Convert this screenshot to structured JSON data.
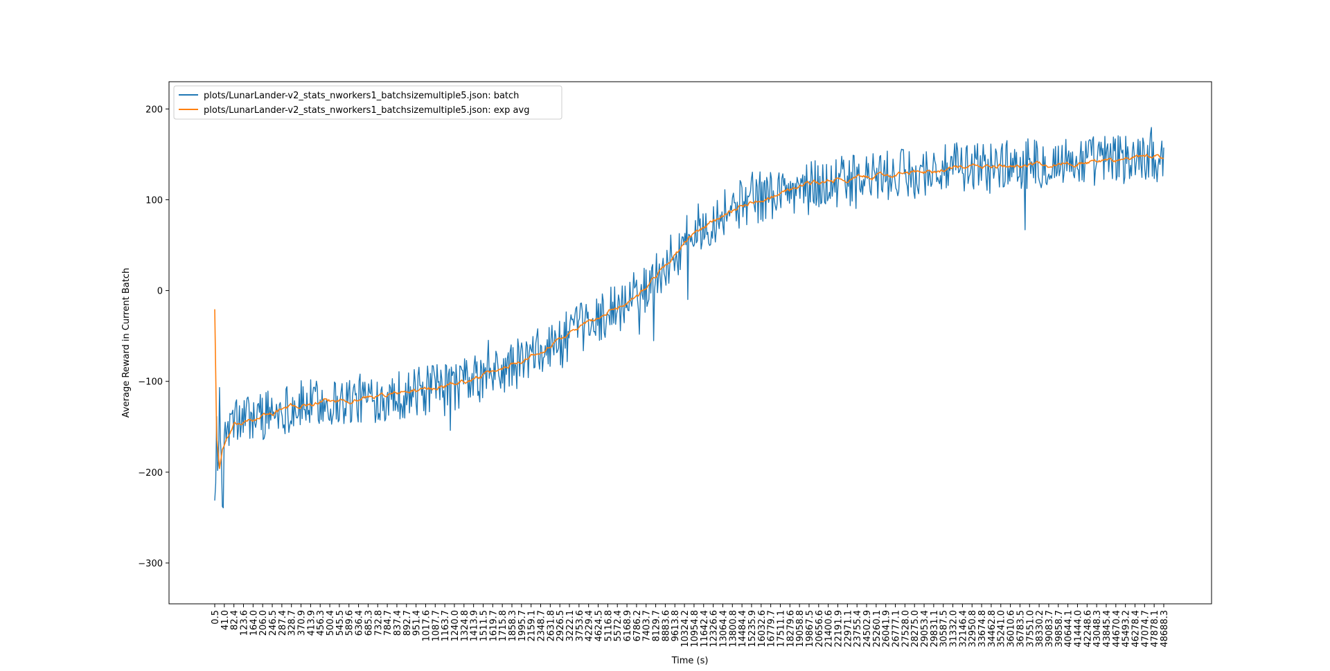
{
  "chart_data": {
    "type": "line",
    "title": "",
    "xlabel": "Time (s)",
    "ylabel": "Average Reward in Current Batch",
    "x_tick_labels": [
      "0.5",
      "41.0",
      "82.4",
      "123.6",
      "164.0",
      "206.0",
      "246.5",
      "287.4",
      "328.7",
      "370.9",
      "413.9",
      "456.3",
      "500.4",
      "545.5",
      "589.6",
      "636.4",
      "685.3",
      "732.8",
      "784.7",
      "837.4",
      "892.7",
      "951.4",
      "1017.6",
      "1087.7",
      "1163.7",
      "1240.0",
      "1324.8",
      "1413.9",
      "1511.5",
      "1619.7",
      "1715.8",
      "1858.3",
      "1995.7",
      "2159.1",
      "2348.7",
      "2631.8",
      "2926.5",
      "3222.1",
      "3753.6",
      "4229.4",
      "4624.5",
      "5116.8",
      "5572.4",
      "6168.9",
      "6786.2",
      "7403.7",
      "8129.7",
      "8883.6",
      "9613.8",
      "10324.2",
      "10954.8",
      "11642.4",
      "12326.6",
      "13064.4",
      "13800.8",
      "14484.4",
      "15235.9",
      "16032.6",
      "16779.7",
      "17511.1",
      "18279.6",
      "19058.8",
      "19867.5",
      "20656.6",
      "21400.6",
      "22191.9",
      "22971.1",
      "23755.4",
      "24502.9",
      "25260.1",
      "26041.9",
      "26777.1",
      "27528.0",
      "28275.0",
      "29053.4",
      "29831.1",
      "30587.5",
      "31332.0",
      "32146.4",
      "32950.8",
      "33674.8",
      "34462.8",
      "35241.0",
      "36010.6",
      "36783.5",
      "37551.0",
      "38330.2",
      "39083.7",
      "39858.7",
      "40644.1",
      "41444.0",
      "42248.6",
      "43048.3",
      "43845.4",
      "44670.4",
      "45493.2",
      "46278.4",
      "47074.7",
      "47878.1",
      "48688.3"
    ],
    "ylim": [
      -345,
      230
    ],
    "y_ticks": [
      -300,
      -200,
      -100,
      0,
      100,
      200
    ],
    "legend_position": "top-left",
    "n_points": 1000,
    "series": [
      {
        "name": "plots/LunarLander-v2_stats_nworkers1_batchsizemultiple5.json: batch",
        "color": "#1f77b4",
        "trend": [
          [
            0,
            -200
          ],
          [
            1,
            -190
          ],
          [
            5,
            -165
          ],
          [
            20,
            -145
          ],
          [
            80,
            -128
          ],
          [
            150,
            -120
          ],
          [
            230,
            -110
          ],
          [
            290,
            -95
          ],
          [
            340,
            -70
          ],
          [
            380,
            -45
          ],
          [
            410,
            -25
          ],
          [
            435,
            -15
          ],
          [
            455,
            5
          ],
          [
            480,
            35
          ],
          [
            505,
            65
          ],
          [
            540,
            90
          ],
          [
            580,
            105
          ],
          [
            620,
            115
          ],
          [
            700,
            125
          ],
          [
            800,
            137
          ],
          [
            900,
            142
          ],
          [
            1000,
            147
          ]
        ],
        "noise_amplitude": 28
      },
      {
        "name": "plots/LunarLander-v2_stats_nworkers1_batchsizemultiple5.json: exp avg",
        "color": "#ff7f0e",
        "trend": [
          [
            0,
            -20
          ],
          [
            2,
            -160
          ],
          [
            5,
            -195
          ],
          [
            8,
            -175
          ],
          [
            20,
            -150
          ],
          [
            80,
            -128
          ],
          [
            150,
            -119
          ],
          [
            230,
            -108
          ],
          [
            290,
            -92
          ],
          [
            340,
            -67
          ],
          [
            380,
            -42
          ],
          [
            410,
            -27
          ],
          [
            435,
            -12
          ],
          [
            455,
            5
          ],
          [
            480,
            35
          ],
          [
            505,
            62
          ],
          [
            540,
            88
          ],
          [
            580,
            103
          ],
          [
            620,
            117
          ],
          [
            700,
            126
          ],
          [
            800,
            136
          ],
          [
            900,
            140
          ],
          [
            1000,
            148
          ]
        ],
        "noise_amplitude": 5
      }
    ]
  }
}
